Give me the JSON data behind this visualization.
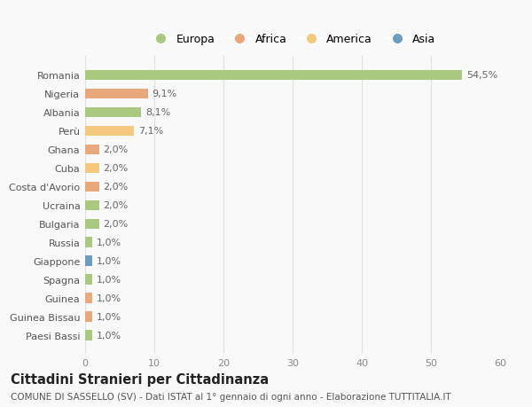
{
  "categories": [
    "Paesi Bassi",
    "Guinea Bissau",
    "Guinea",
    "Spagna",
    "Giappone",
    "Russia",
    "Bulgaria",
    "Ucraina",
    "Costa d'Avorio",
    "Cuba",
    "Ghana",
    "Perù",
    "Albania",
    "Nigeria",
    "Romania"
  ],
  "values": [
    1.0,
    1.0,
    1.0,
    1.0,
    1.0,
    1.0,
    2.0,
    2.0,
    2.0,
    2.0,
    2.0,
    7.1,
    8.1,
    9.1,
    54.5
  ],
  "labels": [
    "1,0%",
    "1,0%",
    "1,0%",
    "1,0%",
    "1,0%",
    "1,0%",
    "2,0%",
    "2,0%",
    "2,0%",
    "2,0%",
    "2,0%",
    "7,1%",
    "8,1%",
    "9,1%",
    "54,5%"
  ],
  "colors": [
    "#a8c97f",
    "#e8a87c",
    "#e8a87c",
    "#a8c97f",
    "#6b9dc2",
    "#a8c97f",
    "#a8c97f",
    "#a8c97f",
    "#e8a87c",
    "#f2c97e",
    "#e8a87c",
    "#f2c97e",
    "#a8c97f",
    "#e8a87c",
    "#a8c97f"
  ],
  "legend_labels": [
    "Europa",
    "Africa",
    "America",
    "Asia"
  ],
  "legend_colors": [
    "#a8c97f",
    "#e8a87c",
    "#f2c97e",
    "#6b9dc2"
  ],
  "title": "Cittadini Stranieri per Cittadinanza",
  "subtitle": "COMUNE DI SASSELLO (SV) - Dati ISTAT al 1° gennaio di ogni anno - Elaborazione TUTTITALIA.IT",
  "xlim": [
    0,
    60
  ],
  "xticks": [
    0,
    10,
    20,
    30,
    40,
    50,
    60
  ],
  "background_color": "#f9f9f9",
  "grid_color": "#e0e0e0",
  "bar_height": 0.55,
  "label_fontsize": 8,
  "tick_fontsize": 8,
  "title_fontsize": 10.5,
  "subtitle_fontsize": 7.5
}
